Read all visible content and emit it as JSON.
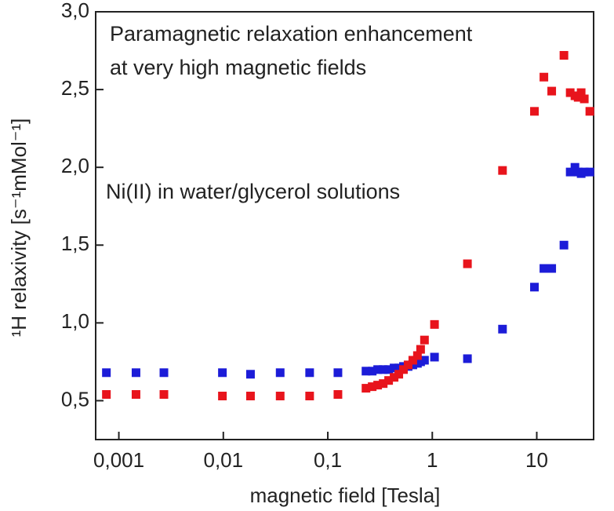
{
  "chart_data": {
    "type": "scatter",
    "annotations": [
      "Paramagnetic relaxation enhancement",
      "at very high magnetic fields",
      "Ni(II) in water/glycerol solutions"
    ],
    "xlabel": "magnetic field [Tesla]",
    "ylabel": "¹H relaxivity [s⁻¹mMol⁻¹]",
    "xscale": "log",
    "xlim": [
      0.0006,
      35
    ],
    "xticks": [
      {
        "value": 0.001,
        "label": "0,001"
      },
      {
        "value": 0.01,
        "label": "0,01"
      },
      {
        "value": 0.1,
        "label": "0,1"
      },
      1,
      10
    ],
    "ylim": [
      0.25,
      3.0
    ],
    "yticks": [
      {
        "value": 0.5,
        "label": "0,5"
      },
      {
        "value": 1.0,
        "label": "1,0"
      },
      {
        "value": 1.5,
        "label": "1,5"
      },
      {
        "value": 2.0,
        "label": "2,0"
      },
      {
        "value": 2.5,
        "label": "2,5"
      },
      {
        "value": 3.0,
        "label": "3,0"
      }
    ],
    "x": [
      0.00076,
      0.00146,
      0.0027,
      0.0098,
      0.0182,
      0.035,
      0.067,
      0.125,
      0.232,
      0.266,
      0.3,
      0.339,
      0.382,
      0.431,
      0.478,
      0.53,
      0.587,
      0.651,
      0.721,
      0.773,
      0.842,
      1.05,
      2.17,
      4.7,
      9.5,
      11.7,
      13.9,
      18.2,
      20.9,
      23.2,
      24.9,
      26.6,
      28.5,
      32.2
    ],
    "series": [
      {
        "color": "#1c1cd8",
        "values": [
          0.68,
          0.68,
          0.68,
          0.68,
          0.67,
          0.68,
          0.68,
          0.68,
          0.69,
          0.69,
          0.7,
          0.7,
          0.7,
          0.71,
          0.71,
          0.72,
          0.72,
          0.73,
          0.74,
          0.75,
          0.76,
          0.78,
          0.77,
          0.96,
          1.23,
          1.35,
          1.35,
          1.5,
          1.97,
          2.0,
          1.97,
          1.96,
          1.97,
          1.97
        ]
      },
      {
        "color": "#e8141c",
        "values": [
          0.54,
          0.54,
          0.54,
          0.53,
          0.53,
          0.53,
          0.53,
          0.54,
          0.58,
          0.59,
          0.6,
          0.61,
          0.63,
          0.65,
          0.67,
          0.7,
          0.73,
          0.76,
          0.79,
          0.83,
          0.89,
          0.99,
          1.38,
          1.98,
          2.36,
          2.58,
          2.49,
          2.72,
          2.48,
          2.46,
          2.45,
          2.48,
          2.44,
          2.36
        ]
      }
    ]
  }
}
